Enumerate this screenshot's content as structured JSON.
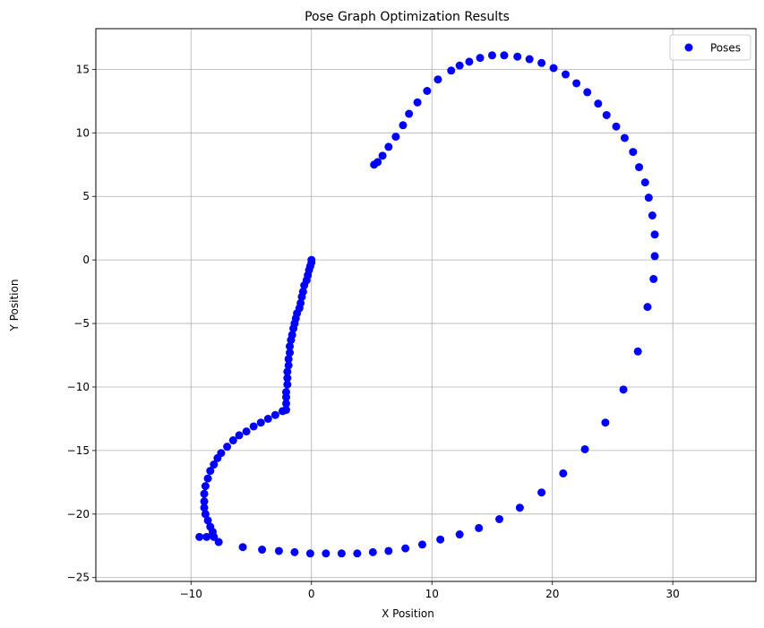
{
  "chart_data": {
    "type": "scatter",
    "title": "Pose Graph Optimization Results",
    "xlabel": "X Position",
    "ylabel": "Y Position",
    "xlim": [
      -17.9,
      36.9
    ],
    "ylim": [
      -25.3,
      18.2
    ],
    "xticks": [
      -10,
      0,
      10,
      20,
      30
    ],
    "yticks": [
      -25,
      -20,
      -15,
      -10,
      -5,
      0,
      5,
      10,
      15
    ],
    "xtick_labels": [
      "−10",
      "0",
      "10",
      "20",
      "30"
    ],
    "ytick_labels": [
      "−25",
      "−20",
      "−15",
      "−10",
      "−5",
      "0",
      "5",
      "10",
      "15"
    ],
    "grid": true,
    "legend_position": "top-right",
    "series": [
      {
        "name": "Poses",
        "color": "#0000ff",
        "marker": "circle",
        "points": [
          [
            0.0,
            0.0
          ],
          [
            0.0,
            -0.2
          ],
          [
            -0.1,
            -0.5
          ],
          [
            -0.2,
            -0.8
          ],
          [
            -0.3,
            -1.2
          ],
          [
            -0.4,
            -1.6
          ],
          [
            -0.6,
            -2.0
          ],
          [
            -0.7,
            -2.5
          ],
          [
            -0.8,
            -2.9
          ],
          [
            -0.9,
            -3.4
          ],
          [
            -1.0,
            -3.8
          ],
          [
            -1.2,
            -4.2
          ],
          [
            -1.3,
            -4.6
          ],
          [
            -1.4,
            -5.0
          ],
          [
            -1.5,
            -5.4
          ],
          [
            -1.6,
            -5.9
          ],
          [
            -1.7,
            -6.3
          ],
          [
            -1.8,
            -6.8
          ],
          [
            -1.8,
            -7.3
          ],
          [
            -1.9,
            -7.8
          ],
          [
            -1.9,
            -8.3
          ],
          [
            -2.0,
            -8.8
          ],
          [
            -2.0,
            -9.3
          ],
          [
            -2.0,
            -9.8
          ],
          [
            -2.1,
            -10.4
          ],
          [
            -2.1,
            -10.8
          ],
          [
            -2.1,
            -11.3
          ],
          [
            -2.1,
            -11.8
          ],
          [
            -2.4,
            -11.9
          ],
          [
            -3.0,
            -12.2
          ],
          [
            -3.6,
            -12.5
          ],
          [
            -4.2,
            -12.8
          ],
          [
            -4.8,
            -13.1
          ],
          [
            -5.4,
            -13.5
          ],
          [
            -6.0,
            -13.8
          ],
          [
            -6.5,
            -14.2
          ],
          [
            -7.0,
            -14.7
          ],
          [
            -7.5,
            -15.2
          ],
          [
            -7.8,
            -15.6
          ],
          [
            -8.1,
            -16.1
          ],
          [
            -8.4,
            -16.6
          ],
          [
            -8.6,
            -17.2
          ],
          [
            -8.8,
            -17.8
          ],
          [
            -8.9,
            -18.4
          ],
          [
            -8.9,
            -19.0
          ],
          [
            -8.9,
            -19.5
          ],
          [
            -8.8,
            -20.0
          ],
          [
            -8.6,
            -20.5
          ],
          [
            -8.4,
            -21.0
          ],
          [
            -8.2,
            -21.4
          ],
          [
            -8.1,
            -21.8
          ],
          [
            -8.7,
            -21.8
          ],
          [
            -9.3,
            -21.8
          ],
          [
            -7.7,
            -22.2
          ],
          [
            -5.7,
            -22.6
          ],
          [
            -4.1,
            -22.8
          ],
          [
            -2.7,
            -22.9
          ],
          [
            -1.4,
            -23.0
          ],
          [
            -0.1,
            -23.1
          ],
          [
            1.2,
            -23.1
          ],
          [
            2.5,
            -23.1
          ],
          [
            3.8,
            -23.1
          ],
          [
            5.1,
            -23.0
          ],
          [
            6.4,
            -22.9
          ],
          [
            7.8,
            -22.7
          ],
          [
            9.2,
            -22.4
          ],
          [
            10.7,
            -22.0
          ],
          [
            12.3,
            -21.6
          ],
          [
            13.9,
            -21.1
          ],
          [
            15.6,
            -20.4
          ],
          [
            17.3,
            -19.5
          ],
          [
            19.1,
            -18.3
          ],
          [
            20.9,
            -16.8
          ],
          [
            22.7,
            -14.9
          ],
          [
            24.4,
            -12.8
          ],
          [
            25.9,
            -10.2
          ],
          [
            27.1,
            -7.2
          ],
          [
            27.9,
            -3.7
          ],
          [
            28.4,
            -1.5
          ],
          [
            28.5,
            0.3
          ],
          [
            28.5,
            2.0
          ],
          [
            28.3,
            3.5
          ],
          [
            28.0,
            4.9
          ],
          [
            27.7,
            6.1
          ],
          [
            27.2,
            7.3
          ],
          [
            26.7,
            8.5
          ],
          [
            26.0,
            9.6
          ],
          [
            25.3,
            10.5
          ],
          [
            24.5,
            11.4
          ],
          [
            23.8,
            12.3
          ],
          [
            22.9,
            13.2
          ],
          [
            22.0,
            13.9
          ],
          [
            21.1,
            14.6
          ],
          [
            20.1,
            15.1
          ],
          [
            19.1,
            15.5
          ],
          [
            18.1,
            15.8
          ],
          [
            17.1,
            16.0
          ],
          [
            16.0,
            16.1
          ],
          [
            15.0,
            16.1
          ],
          [
            14.0,
            15.9
          ],
          [
            13.1,
            15.6
          ],
          [
            12.3,
            15.3
          ],
          [
            11.6,
            14.9
          ],
          [
            10.5,
            14.2
          ],
          [
            9.6,
            13.3
          ],
          [
            8.8,
            12.4
          ],
          [
            8.1,
            11.5
          ],
          [
            7.6,
            10.6
          ],
          [
            7.0,
            9.7
          ],
          [
            6.4,
            8.9
          ],
          [
            5.9,
            8.2
          ],
          [
            5.5,
            7.7
          ],
          [
            5.2,
            7.5
          ]
        ]
      }
    ]
  }
}
